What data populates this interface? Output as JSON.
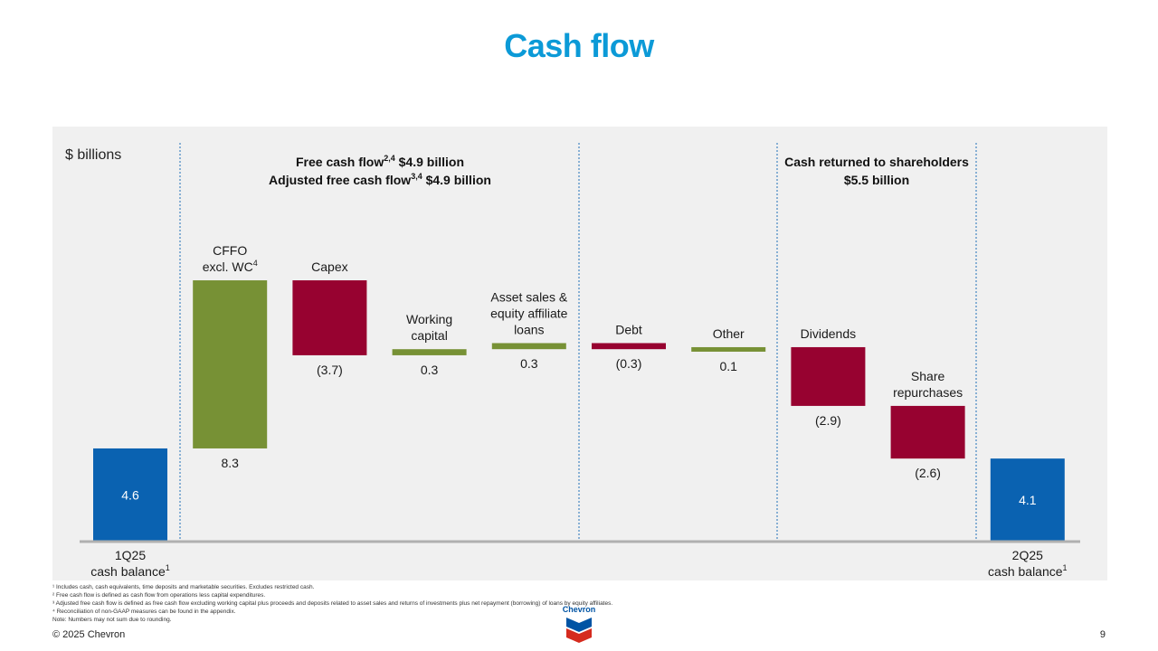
{
  "title": "Cash flow",
  "units_label": "$ billions",
  "sections": {
    "fcf_line1": "Free cash flow",
    "fcf_sup1": "2,4",
    "fcf_value1": " $4.9 billion",
    "fcf_line2": "Adjusted free cash flow",
    "fcf_sup2": "3,4",
    "fcf_value2": " $4.9 billion",
    "returned_line1": "Cash returned to shareholders",
    "returned_line2": "$5.5 billion"
  },
  "chart_data": {
    "type": "bar",
    "subtype": "waterfall",
    "ylabel": "$ billions",
    "categories": [
      "1Q25 cash balance",
      "CFFO excl. WC",
      "Capex",
      "Working capital",
      "Asset sales & equity affiliate loans",
      "Debt",
      "Other",
      "Dividends",
      "Share repurchases",
      "2Q25 cash balance"
    ],
    "values": [
      4.6,
      8.3,
      -3.7,
      0.3,
      0.3,
      -0.3,
      0.1,
      -2.9,
      -2.6,
      4.1
    ],
    "value_labels": [
      "4.6",
      "8.3",
      "(3.7)",
      "0.3",
      "0.3",
      "(0.3)",
      "0.1",
      "(2.9)",
      "(2.6)",
      "4.1"
    ],
    "kinds": [
      "total",
      "increase",
      "decrease",
      "increase",
      "increase",
      "decrease",
      "increase",
      "decrease",
      "decrease",
      "total"
    ],
    "category_label_lines": [
      [
        "1Q25",
        "cash balance"
      ],
      [
        "CFFO",
        "excl. WC"
      ],
      [
        "Capex"
      ],
      [
        "Working",
        "capital"
      ],
      [
        "Asset sales &",
        "equity affiliate",
        "loans"
      ],
      [
        "Debt"
      ],
      [
        "Other"
      ],
      [
        "Dividends"
      ],
      [
        "Share",
        "repurchases"
      ],
      [
        "2Q25",
        "cash balance"
      ]
    ],
    "category_superscripts": [
      "1",
      "4",
      "",
      "",
      "",
      "",
      "",
      "",
      "",
      "1"
    ],
    "colors": {
      "total": "#0a62b1",
      "increase": "#779135",
      "decrease": "#970230"
    },
    "grid": false,
    "legend": "none"
  },
  "footnotes": [
    "¹ Includes cash, cash equivalents, time deposits and marketable securities. Excludes restricted cash.",
    "² Free cash flow is defined as cash flow from operations less capital expenditures.",
    "³ Adjusted free cash flow is defined as free cash flow excluding working capital plus proceeds and deposits related to asset sales and returns of investments plus net repayment (borrowing) of loans by equity affiliates.",
    "⁴ Reconciliation of non-GAAP measures can be found in the appendix.",
    "Note: Numbers may not sum due to rounding."
  ],
  "copyright": "© 2025 Chevron",
  "page_number": "9",
  "logo_text": "Chevron"
}
